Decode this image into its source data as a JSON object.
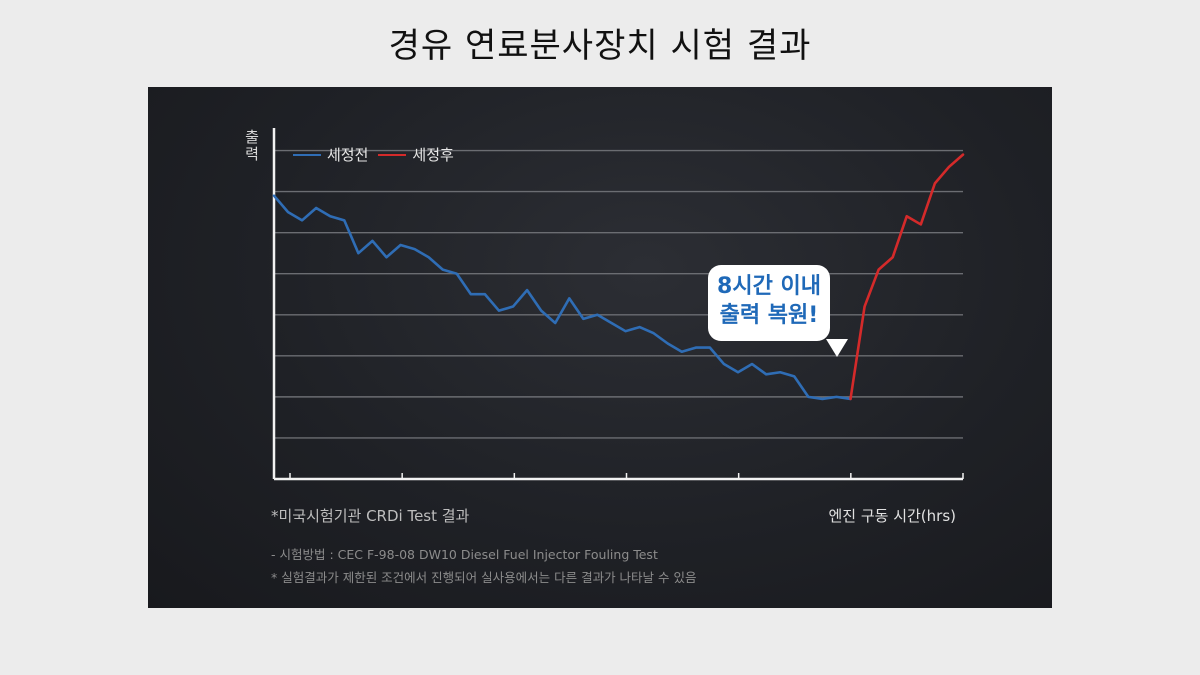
{
  "title": "경유 연료분사장치 시험 결과",
  "chart_data": {
    "type": "line",
    "title": "",
    "ylabel": "출력",
    "xlabel": "엔진 구동 시간(hrs)",
    "grid": true,
    "legend_position": "top-left",
    "x": [
      0,
      1,
      2,
      3,
      4,
      5,
      6,
      7,
      8,
      9,
      10,
      11,
      12,
      13,
      14,
      15,
      16,
      17,
      18,
      19,
      20,
      21,
      22,
      23,
      24,
      25,
      26,
      27,
      28,
      29,
      30,
      31,
      32,
      33,
      34,
      35,
      36,
      37,
      38,
      39,
      40,
      41,
      42,
      43,
      44,
      45,
      46,
      47,
      48,
      49
    ],
    "ylim": [
      0,
      8.5
    ],
    "series": [
      {
        "name": "세정전",
        "color": "#2f6db5",
        "x": [
          0,
          1,
          2,
          3,
          4,
          5,
          6,
          7,
          8,
          9,
          10,
          11,
          12,
          13,
          14,
          15,
          16,
          17,
          18,
          19,
          20,
          21,
          22,
          23,
          24,
          25,
          26,
          27,
          28,
          29,
          30,
          31,
          32,
          33,
          34,
          35,
          36,
          37,
          38,
          39,
          40,
          41
        ],
        "values": [
          6.9,
          6.5,
          6.3,
          6.6,
          6.4,
          6.3,
          5.5,
          5.8,
          5.4,
          5.7,
          5.6,
          5.4,
          5.1,
          5.0,
          4.5,
          4.5,
          4.1,
          4.2,
          4.6,
          4.1,
          3.8,
          4.4,
          3.9,
          4.0,
          3.8,
          3.6,
          3.7,
          3.55,
          3.3,
          3.1,
          3.2,
          3.2,
          2.8,
          2.6,
          2.8,
          2.55,
          2.6,
          2.5,
          2.0,
          1.95,
          2.0,
          1.95
        ]
      },
      {
        "name": "세정후",
        "color": "#d42a2a",
        "x": [
          41,
          42,
          43,
          44,
          45,
          46,
          47,
          48,
          49
        ],
        "values": [
          1.95,
          4.2,
          5.1,
          5.4,
          6.4,
          6.2,
          7.2,
          7.6,
          7.9
        ]
      }
    ]
  },
  "callout": {
    "line1": "8시간 이내",
    "line2": "출력 복원!"
  },
  "notes": {
    "source": "*미국시험기관 CRDi Test 결과",
    "method": "- 시험방법 : CEC F-98-08 DW10 Diesel Fuel Injector Fouling Test",
    "disclaimer": "* 실험결과가 제한된 조건에서 진행되어 실사용에서는 다른 결과가 나타날 수 있음"
  }
}
